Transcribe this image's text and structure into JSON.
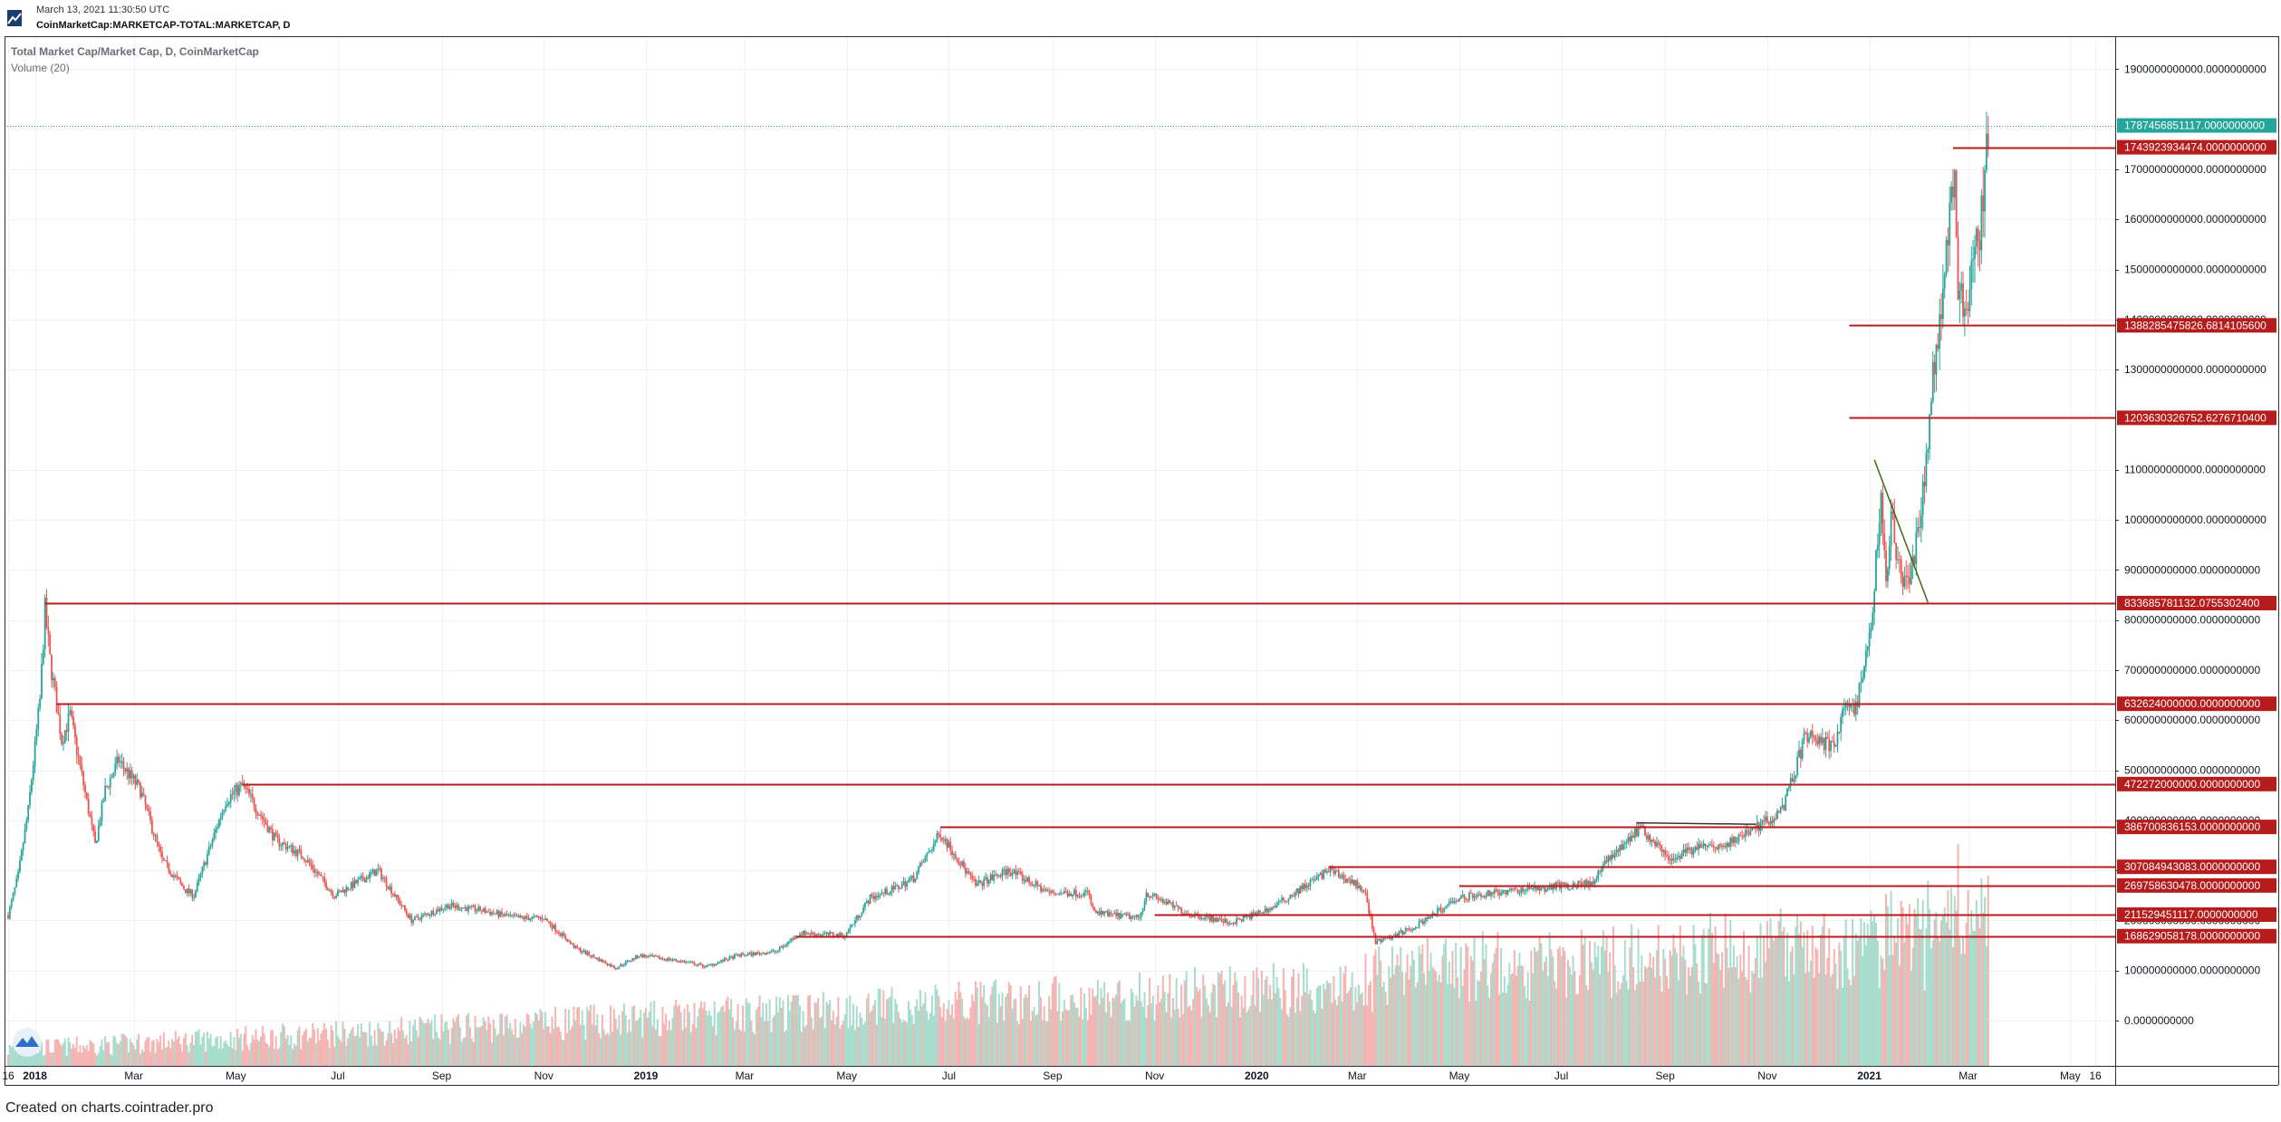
{
  "header": {
    "date": "March 13, 2021 11:30:50 UTC",
    "symbol": "CoinMarketCap:MARKETCAP-TOTAL:MARKETCAP, D"
  },
  "legend": {
    "title": "Total Market Cap/Market Cap, D, CoinMarketCap",
    "volume": "Volume (20)"
  },
  "footer": {
    "text": "Created on charts.cointrader.pro"
  },
  "colors": {
    "up": "#26a69a",
    "down": "#ef5350",
    "vol_up": "#a8dccd",
    "vol_down": "#f5b4b2",
    "level": "#b71c1c",
    "trend": "#3d6b0f",
    "last_price": "#26a69a",
    "grid": "#eef1f5"
  },
  "icons": {
    "logo": "chart-logo-icon",
    "watermark": "tradingview-watermark-icon"
  },
  "chart_data": {
    "type": "candlestick",
    "title": "Total Market Cap/Market Cap, D, CoinMarketCap",
    "x_range": [
      "2017-12-16",
      "2021-05-16"
    ],
    "y_range": [
      0,
      1950000000000
    ],
    "grid": true,
    "y_tick_labels": [
      {
        "value": 0,
        "label": "0.0000000000"
      },
      {
        "value": 100000000000,
        "label": "100000000000.0000000000"
      },
      {
        "value": 200000000000,
        "label": "200000000000.0000000000"
      },
      {
        "value": 300000000000,
        "label": "300000000000.0000000000"
      },
      {
        "value": 400000000000,
        "label": "400000000000.0000000000"
      },
      {
        "value": 500000000000,
        "label": "500000000000.0000000000"
      },
      {
        "value": 600000000000,
        "label": "600000000000.0000000000"
      },
      {
        "value": 700000000000,
        "label": "700000000000.0000000000"
      },
      {
        "value": 800000000000,
        "label": "800000000000.0000000000"
      },
      {
        "value": 900000000000,
        "label": "900000000000.0000000000"
      },
      {
        "value": 1000000000000,
        "label": "1000000000000.0000000000"
      },
      {
        "value": 1100000000000,
        "label": "1100000000000.0000000000"
      },
      {
        "value": 1300000000000,
        "label": "1300000000000.0000000000"
      },
      {
        "value": 1400000000000,
        "label": "1400000000000.0000000000"
      },
      {
        "value": 1500000000000,
        "label": "1500000000000.0000000000"
      },
      {
        "value": 1600000000000,
        "label": "1600000000000.0000000000"
      },
      {
        "value": 1700000000000,
        "label": "1700000000000.0000000000"
      },
      {
        "value": 1900000000000,
        "label": "1900000000000.0000000000"
      }
    ],
    "x_tick_labels": [
      {
        "date": "2017-12-16",
        "label": "16",
        "bold": false
      },
      {
        "date": "2018-01-01",
        "label": "2018",
        "bold": true
      },
      {
        "date": "2018-03-01",
        "label": "Mar",
        "bold": false
      },
      {
        "date": "2018-05-01",
        "label": "May",
        "bold": false
      },
      {
        "date": "2018-07-01",
        "label": "Jul",
        "bold": false
      },
      {
        "date": "2018-09-01",
        "label": "Sep",
        "bold": false
      },
      {
        "date": "2018-11-01",
        "label": "Nov",
        "bold": false
      },
      {
        "date": "2019-01-01",
        "label": "2019",
        "bold": true
      },
      {
        "date": "2019-03-01",
        "label": "Mar",
        "bold": false
      },
      {
        "date": "2019-05-01",
        "label": "May",
        "bold": false
      },
      {
        "date": "2019-07-01",
        "label": "Jul",
        "bold": false
      },
      {
        "date": "2019-09-01",
        "label": "Sep",
        "bold": false
      },
      {
        "date": "2019-11-01",
        "label": "Nov",
        "bold": false
      },
      {
        "date": "2020-01-01",
        "label": "2020",
        "bold": true
      },
      {
        "date": "2020-03-01",
        "label": "Mar",
        "bold": false
      },
      {
        "date": "2020-05-01",
        "label": "May",
        "bold": false
      },
      {
        "date": "2020-07-01",
        "label": "Jul",
        "bold": false
      },
      {
        "date": "2020-09-01",
        "label": "Sep",
        "bold": false
      },
      {
        "date": "2020-11-01",
        "label": "Nov",
        "bold": false
      },
      {
        "date": "2021-01-01",
        "label": "2021",
        "bold": true
      },
      {
        "date": "2021-03-01",
        "label": "Mar",
        "bold": false
      },
      {
        "date": "2021-05-01",
        "label": "May",
        "bold": false
      },
      {
        "date": "2021-05-16",
        "label": "16",
        "bold": false
      }
    ],
    "last_price": {
      "value": 1787456851117,
      "label": "1787456851117.0000000000"
    },
    "levels": [
      {
        "value": 1743923934474,
        "label": "1743923934474.0000000000",
        "from": "2021-02-20"
      },
      {
        "value": 1388285475826.68,
        "label": "1388285475826.6814105600",
        "from": "2020-12-20"
      },
      {
        "value": 1203630326752.63,
        "label": "1203630326752.6276710400",
        "from": "2020-12-20"
      },
      {
        "value": 833685781132.08,
        "label": "833685781132.0755302400",
        "from": "2018-01-07"
      },
      {
        "value": 632624000000,
        "label": "632624000000.0000000000",
        "from": "2018-01-14"
      },
      {
        "value": 472272000000,
        "label": "472272000000.0000000000",
        "from": "2018-05-05"
      },
      {
        "value": 386700836153,
        "label": "386700836153.0000000000",
        "from": "2019-06-26"
      },
      {
        "value": 307084943083,
        "label": "307084943083.0000000000",
        "from": "2020-02-13"
      },
      {
        "value": 269758630478,
        "label": "269758630478.0000000000",
        "from": "2020-05-01"
      },
      {
        "value": 211529451117,
        "label": "211529451117.0000000000",
        "from": "2019-11-01"
      },
      {
        "value": 168629058178,
        "label": "168629058178.0000000000",
        "from": "2019-04-01"
      }
    ],
    "trendlines": [
      {
        "x1": "2021-01-04",
        "y1": 1120000000000,
        "x2": "2021-02-05",
        "y2": 835000000000
      },
      {
        "x1": "2020-08-15",
        "y1": 395000000000,
        "x2": "2020-10-25",
        "y2": 392000000000
      }
    ],
    "price_path": [
      [
        "2017-12-16",
        210000000000
      ],
      [
        "2017-12-22",
        290000000000
      ],
      [
        "2017-12-28",
        420000000000
      ],
      [
        "2018-01-04",
        640000000000
      ],
      [
        "2018-01-07",
        820000000000
      ],
      [
        "2018-01-10",
        720000000000
      ],
      [
        "2018-01-17",
        560000000000
      ],
      [
        "2018-01-22",
        610000000000
      ],
      [
        "2018-02-06",
        350000000000
      ],
      [
        "2018-02-12",
        460000000000
      ],
      [
        "2018-02-20",
        520000000000
      ],
      [
        "2018-03-05",
        460000000000
      ],
      [
        "2018-03-18",
        320000000000
      ],
      [
        "2018-04-01",
        260000000000
      ],
      [
        "2018-04-06",
        250000000000
      ],
      [
        "2018-04-25",
        440000000000
      ],
      [
        "2018-05-05",
        470000000000
      ],
      [
        "2018-05-25",
        360000000000
      ],
      [
        "2018-06-10",
        330000000000
      ],
      [
        "2018-06-29",
        250000000000
      ],
      [
        "2018-07-25",
        300000000000
      ],
      [
        "2018-08-14",
        200000000000
      ],
      [
        "2018-09-05",
        230000000000
      ],
      [
        "2018-09-25",
        220000000000
      ],
      [
        "2018-10-15",
        205000000000
      ],
      [
        "2018-11-01",
        205000000000
      ],
      [
        "2018-11-20",
        145000000000
      ],
      [
        "2018-12-14",
        105000000000
      ],
      [
        "2018-12-28",
        130000000000
      ],
      [
        "2019-01-20",
        120000000000
      ],
      [
        "2019-02-06",
        108000000000
      ],
      [
        "2019-02-25",
        130000000000
      ],
      [
        "2019-03-20",
        138000000000
      ],
      [
        "2019-04-03",
        175000000000
      ],
      [
        "2019-04-30",
        170000000000
      ],
      [
        "2019-05-15",
        245000000000
      ],
      [
        "2019-05-31",
        265000000000
      ],
      [
        "2019-06-10",
        285000000000
      ],
      [
        "2019-06-26",
        375000000000
      ],
      [
        "2019-07-05",
        330000000000
      ],
      [
        "2019-07-17",
        270000000000
      ],
      [
        "2019-08-06",
        300000000000
      ],
      [
        "2019-08-30",
        255000000000
      ],
      [
        "2019-09-22",
        255000000000
      ],
      [
        "2019-09-26",
        215000000000
      ],
      [
        "2019-10-23",
        205000000000
      ],
      [
        "2019-10-27",
        255000000000
      ],
      [
        "2019-11-20",
        215000000000
      ],
      [
        "2019-12-17",
        195000000000
      ],
      [
        "2020-01-10",
        225000000000
      ],
      [
        "2020-02-13",
        300000000000
      ],
      [
        "2020-03-05",
        265000000000
      ],
      [
        "2020-03-12",
        155000000000
      ],
      [
        "2020-04-06",
        190000000000
      ],
      [
        "2020-04-30",
        245000000000
      ],
      [
        "2020-05-20",
        255000000000
      ],
      [
        "2020-06-20",
        265000000000
      ],
      [
        "2020-07-20",
        275000000000
      ],
      [
        "2020-08-02",
        340000000000
      ],
      [
        "2020-08-17",
        385000000000
      ],
      [
        "2020-09-05",
        325000000000
      ],
      [
        "2020-09-20",
        345000000000
      ],
      [
        "2020-10-08",
        350000000000
      ],
      [
        "2020-10-25",
        385000000000
      ],
      [
        "2020-11-10",
        420000000000
      ],
      [
        "2020-11-24",
        570000000000
      ],
      [
        "2020-12-01",
        560000000000
      ],
      [
        "2020-12-12",
        545000000000
      ],
      [
        "2020-12-17",
        640000000000
      ],
      [
        "2020-12-24",
        620000000000
      ],
      [
        "2021-01-02",
        780000000000
      ],
      [
        "2021-01-08",
        1050000000000
      ],
      [
        "2021-01-11",
        880000000000
      ],
      [
        "2021-01-14",
        1000000000000
      ],
      [
        "2021-01-21",
        880000000000
      ],
      [
        "2021-01-27",
        900000000000
      ],
      [
        "2021-02-02",
        1050000000000
      ],
      [
        "2021-02-08",
        1300000000000
      ],
      [
        "2021-02-14",
        1450000000000
      ],
      [
        "2021-02-21",
        1720000000000
      ],
      [
        "2021-02-23",
        1450000000000
      ],
      [
        "2021-02-28",
        1400000000000
      ],
      [
        "2021-03-03",
        1520000000000
      ],
      [
        "2021-03-08",
        1580000000000
      ],
      [
        "2021-03-13",
        1787000000000
      ]
    ]
  }
}
